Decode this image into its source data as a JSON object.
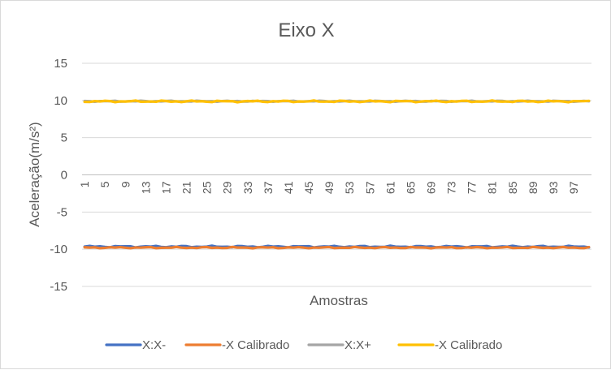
{
  "chart_data": {
    "type": "line",
    "title": "Eixo X",
    "xlabel": "Amostras",
    "ylabel": "Aceleração(m/s²)",
    "ylim": [
      -15,
      15
    ],
    "yticks": [
      15,
      10,
      5,
      0,
      -5,
      -10,
      -15
    ],
    "x_tick_labels": [
      "1",
      "5",
      "9",
      "13",
      "17",
      "21",
      "25",
      "29",
      "33",
      "37",
      "41",
      "45",
      "49",
      "53",
      "57",
      "61",
      "65",
      "69",
      "73",
      "77",
      "81",
      "85",
      "89",
      "93",
      "97"
    ],
    "x_count": 100,
    "grid": true,
    "legend": "bottom",
    "series": [
      {
        "name": "X:X-",
        "color": "#4472C4",
        "base": -9.65,
        "amp": 0.12
      },
      {
        "name": "-X Calibrado",
        "color": "#ED7D31",
        "base": -9.78,
        "amp": 0.1
      },
      {
        "name": "X:X+",
        "color": "#A5A5A5",
        "base": 9.9,
        "amp": 0.08
      },
      {
        "name": "-X Calibrado",
        "color": "#FFC000",
        "base": 9.88,
        "amp": 0.12
      }
    ]
  }
}
